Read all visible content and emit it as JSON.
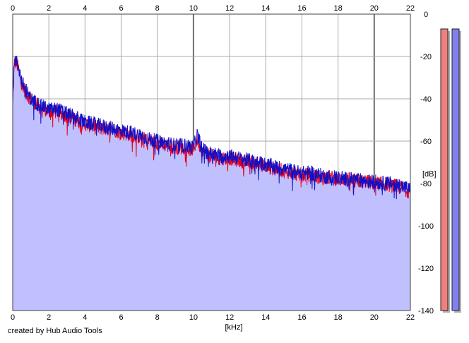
{
  "chart_data": {
    "type": "line",
    "title": "",
    "xlabel": "[kHz]",
    "ylabel": "[dB]",
    "xlim": [
      0,
      22
    ],
    "ylim": [
      -140,
      0
    ],
    "x_ticks": [
      0,
      2,
      4,
      6,
      8,
      10,
      12,
      14,
      16,
      18,
      20,
      22
    ],
    "y_ticks": [
      0,
      -20,
      -40,
      -60,
      -80,
      -100,
      -120,
      -140
    ],
    "grid": true,
    "legend": "none",
    "colors": {
      "left_channel": "#e8001c",
      "right_channel": "#1010c8",
      "fill": "#c0c0ff",
      "grid": "#a8a8a8",
      "major_grid": "#707070",
      "meter_left": "#f08080",
      "meter_right": "#8080f0"
    },
    "series": [
      {
        "x": [
          0.0,
          0.1,
          0.3,
          0.5,
          0.8,
          1.0,
          1.5,
          2.0,
          2.5,
          3.0,
          3.5,
          4.0,
          4.5,
          5.0,
          5.5,
          6.0,
          6.5,
          7.0,
          7.5,
          8.0,
          8.5,
          9.0,
          9.5,
          10.0,
          10.2,
          10.5,
          11.0,
          11.5,
          12.0,
          12.5,
          13.0,
          13.5,
          14.0,
          14.5,
          15.0,
          15.5,
          16.0,
          16.5,
          17.0,
          17.5,
          18.0,
          18.5,
          19.0,
          19.5,
          20.0,
          20.5,
          21.0,
          21.5,
          22.0
        ],
        "values": [
          -42,
          -22,
          -25,
          -33,
          -38,
          -40,
          -44,
          -46,
          -46,
          -48,
          -50,
          -52,
          -53,
          -54,
          -54,
          -56,
          -57,
          -58,
          -60,
          -61,
          -62,
          -63,
          -63,
          -64,
          -59,
          -65,
          -67,
          -68,
          -68,
          -69,
          -70,
          -70,
          -72,
          -73,
          -74,
          -75,
          -76,
          -76,
          -77,
          -77,
          -78,
          -78,
          -79,
          -79,
          -80,
          -80,
          -81,
          -82,
          -84
        ]
      },
      {
        "x": [
          0.0,
          0.1,
          0.3,
          0.5,
          0.8,
          1.0,
          1.5,
          2.0,
          2.5,
          3.0,
          3.5,
          4.0,
          4.5,
          5.0,
          5.5,
          6.0,
          6.5,
          7.0,
          7.5,
          8.0,
          8.5,
          9.0,
          9.5,
          10.0,
          10.2,
          10.5,
          11.0,
          11.5,
          12.0,
          12.5,
          13.0,
          13.5,
          14.0,
          14.5,
          15.0,
          15.5,
          16.0,
          16.5,
          17.0,
          17.5,
          18.0,
          18.5,
          19.0,
          19.5,
          20.0,
          20.5,
          21.0,
          21.5,
          22.0
        ],
        "values": [
          -40,
          -21,
          -24,
          -32,
          -37,
          -40,
          -43,
          -45,
          -45,
          -47,
          -49,
          -51,
          -52,
          -53,
          -54,
          -55,
          -56,
          -57,
          -59,
          -60,
          -61,
          -62,
          -62,
          -63,
          -57,
          -64,
          -66,
          -67,
          -67,
          -68,
          -69,
          -70,
          -71,
          -72,
          -73,
          -74,
          -75,
          -75,
          -76,
          -77,
          -77,
          -78,
          -78,
          -79,
          -79,
          -80,
          -80,
          -81,
          -83
        ]
      }
    ],
    "meters": [
      {
        "channel": "left",
        "peak_db": -7
      },
      {
        "channel": "right",
        "peak_db": -7
      }
    ]
  },
  "footer": {
    "credit": "created by Hub Audio Tools"
  }
}
